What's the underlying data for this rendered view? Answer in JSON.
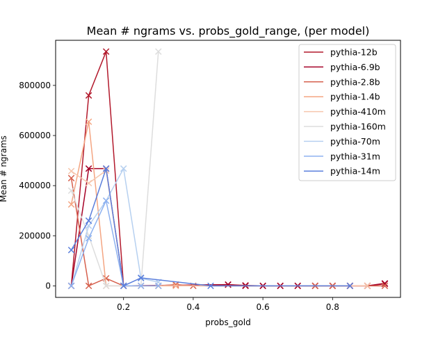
{
  "chart_data": {
    "type": "line",
    "title": "Mean # ngrams vs. probs_gold_range, (per model)",
    "xlabel": "probs_gold",
    "ylabel": "Mean # ngrams",
    "xlim": [
      0.005,
      0.995
    ],
    "ylim": [
      -46000,
      980000
    ],
    "xticks": [
      0.2,
      0.4,
      0.6,
      0.8
    ],
    "xtick_labels": [
      "0.2",
      "0.4",
      "0.6",
      "0.8"
    ],
    "yticks": [
      0,
      200000,
      400000,
      600000,
      800000
    ],
    "ytick_labels": [
      "0",
      "200000",
      "400000",
      "600000",
      "800000"
    ],
    "grid": false,
    "legend_position": "top-right",
    "marker": "x",
    "series": [
      {
        "name": "pythia-12b",
        "color": "#b2182b",
        "points": [
          [
            0.05,
            0
          ],
          [
            0.1,
            760000
          ],
          [
            0.15,
            935000
          ],
          [
            0.2,
            0
          ],
          [
            0.5,
            5000
          ],
          [
            0.55,
            2000
          ],
          [
            0.6,
            0
          ],
          [
            0.65,
            0
          ],
          [
            0.7,
            0
          ],
          [
            0.75,
            0
          ],
          [
            0.8,
            0
          ],
          [
            0.85,
            0
          ],
          [
            0.9,
            0
          ],
          [
            0.95,
            8000
          ]
        ]
      },
      {
        "name": "pythia-6.9b",
        "color": "#a50026",
        "points": [
          [
            0.05,
            0
          ],
          [
            0.1,
            468000
          ],
          [
            0.15,
            468000
          ],
          [
            0.2,
            0
          ],
          [
            0.5,
            5000
          ],
          [
            0.55,
            0
          ],
          [
            0.6,
            0
          ],
          [
            0.65,
            0
          ],
          [
            0.7,
            0
          ],
          [
            0.75,
            0
          ],
          [
            0.8,
            0
          ],
          [
            0.85,
            0
          ],
          [
            0.9,
            0
          ],
          [
            0.95,
            10000
          ]
        ]
      },
      {
        "name": "pythia-2.8b",
        "color": "#d6604d",
        "points": [
          [
            0.05,
            430000
          ],
          [
            0.1,
            0
          ],
          [
            0.15,
            30000
          ],
          [
            0.2,
            0
          ],
          [
            0.25,
            0
          ],
          [
            0.3,
            0
          ],
          [
            0.35,
            5000
          ],
          [
            0.4,
            0
          ],
          [
            0.75,
            0
          ],
          [
            0.8,
            0
          ],
          [
            0.85,
            0
          ],
          [
            0.9,
            0
          ],
          [
            0.95,
            0
          ]
        ]
      },
      {
        "name": "pythia-1.4b",
        "color": "#f4a582",
        "points": [
          [
            0.05,
            325000
          ],
          [
            0.1,
            655000
          ],
          [
            0.15,
            0
          ],
          [
            0.2,
            0
          ],
          [
            0.25,
            0
          ],
          [
            0.3,
            0
          ],
          [
            0.35,
            0
          ]
        ]
      },
      {
        "name": "pythia-410m",
        "color": "#f6c6ad",
        "points": [
          [
            0.05,
            458000
          ],
          [
            0.1,
            410000
          ],
          [
            0.15,
            460000
          ],
          [
            0.2,
            0
          ],
          [
            0.25,
            0
          ],
          [
            0.3,
            0
          ],
          [
            0.9,
            0
          ]
        ]
      },
      {
        "name": "pythia-160m",
        "color": "#dddddd",
        "points": [
          [
            0.05,
            380000
          ],
          [
            0.1,
            200000
          ],
          [
            0.15,
            0
          ],
          [
            0.2,
            0
          ],
          [
            0.25,
            0
          ],
          [
            0.3,
            935000
          ]
        ]
      },
      {
        "name": "pythia-70m",
        "color": "#b6d0f0",
        "points": [
          [
            0.05,
            0
          ],
          [
            0.1,
            240000
          ],
          [
            0.15,
            340000
          ],
          [
            0.2,
            468000
          ],
          [
            0.25,
            30000
          ],
          [
            0.3,
            15000
          ]
        ]
      },
      {
        "name": "pythia-31m",
        "color": "#8eb2f0",
        "points": [
          [
            0.05,
            0
          ],
          [
            0.1,
            190000
          ],
          [
            0.15,
            340000
          ],
          [
            0.2,
            0
          ],
          [
            0.25,
            0
          ],
          [
            0.3,
            0
          ]
        ]
      },
      {
        "name": "pythia-14m",
        "color": "#5b7fdc",
        "points": [
          [
            0.05,
            143000
          ],
          [
            0.1,
            260000
          ],
          [
            0.15,
            468000
          ],
          [
            0.2,
            0
          ],
          [
            0.25,
            32000
          ],
          [
            0.45,
            0
          ],
          [
            0.85,
            0
          ]
        ]
      }
    ]
  }
}
